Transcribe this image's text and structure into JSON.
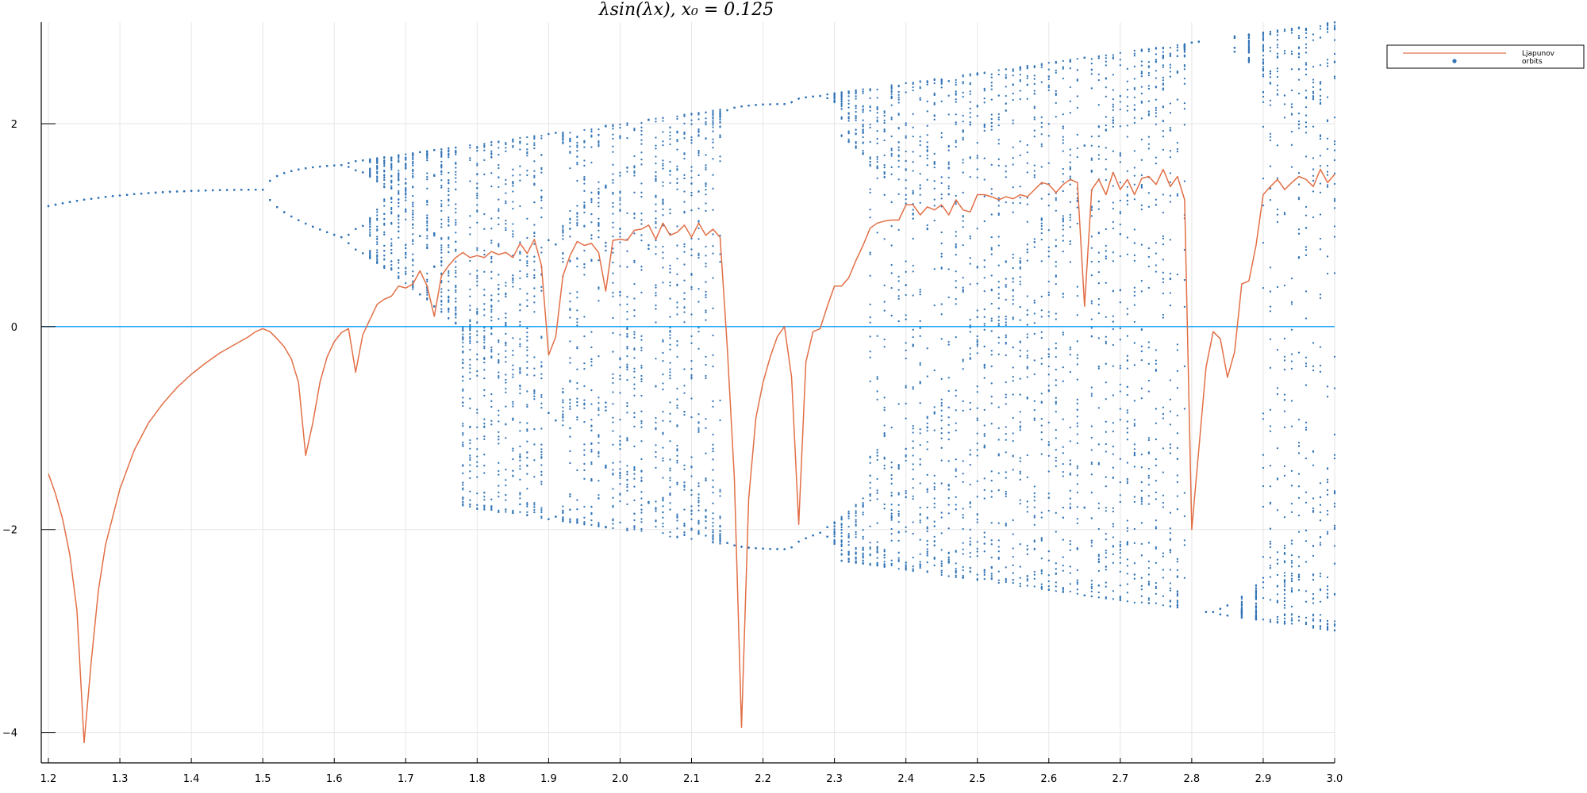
{
  "chart_data": {
    "type": "scatter",
    "title": "λsin(λx),  x₀ = 0.125",
    "xlabel": "",
    "ylabel": "",
    "xlim": [
      1.19,
      3.0
    ],
    "ylim": [
      -4.3,
      3.0
    ],
    "x_ticks": [
      "1.2",
      "1.3",
      "1.4",
      "1.5",
      "1.6",
      "1.7",
      "1.8",
      "1.9",
      "2.0",
      "2.1",
      "2.2",
      "2.3",
      "2.4",
      "2.5",
      "2.6",
      "2.7",
      "2.8",
      "2.9",
      "3.0"
    ],
    "y_ticks": [
      "2",
      "0",
      "−2",
      "−4"
    ],
    "grid": true,
    "legend_position": "top-right",
    "reference_line": {
      "y": 0,
      "color": "#009AFA"
    },
    "series": [
      {
        "name": "Ljapunov",
        "kind": "line",
        "color": "#E26F46",
        "x": [
          1.2,
          1.21,
          1.22,
          1.23,
          1.24,
          1.25,
          1.26,
          1.27,
          1.28,
          1.3,
          1.32,
          1.34,
          1.36,
          1.38,
          1.4,
          1.42,
          1.44,
          1.46,
          1.48,
          1.49,
          1.5,
          1.51,
          1.52,
          1.53,
          1.54,
          1.55,
          1.56,
          1.57,
          1.58,
          1.59,
          1.6,
          1.61,
          1.62,
          1.63,
          1.64,
          1.66,
          1.67,
          1.68,
          1.69,
          1.7,
          1.71,
          1.72,
          1.73,
          1.74,
          1.75,
          1.76,
          1.77,
          1.78,
          1.79,
          1.8,
          1.81,
          1.82,
          1.83,
          1.84,
          1.85,
          1.86,
          1.87,
          1.88,
          1.89,
          1.9,
          1.91,
          1.92,
          1.93,
          1.94,
          1.95,
          1.96,
          1.97,
          1.98,
          1.99,
          2.0,
          2.01,
          2.02,
          2.03,
          2.04,
          2.05,
          2.06,
          2.07,
          2.08,
          2.09,
          2.1,
          2.11,
          2.12,
          2.13,
          2.14,
          2.15,
          2.16,
          2.17,
          2.18,
          2.19,
          2.2,
          2.21,
          2.22,
          2.23,
          2.24,
          2.25,
          2.26,
          2.27,
          2.28,
          2.29,
          2.3,
          2.31,
          2.32,
          2.33,
          2.34,
          2.35,
          2.36,
          2.37,
          2.38,
          2.39,
          2.4,
          2.41,
          2.42,
          2.43,
          2.44,
          2.45,
          2.46,
          2.47,
          2.48,
          2.49,
          2.5,
          2.51,
          2.52,
          2.53,
          2.54,
          2.55,
          2.56,
          2.57,
          2.58,
          2.59,
          2.6,
          2.61,
          2.62,
          2.63,
          2.64,
          2.65,
          2.66,
          2.67,
          2.68,
          2.69,
          2.7,
          2.71,
          2.72,
          2.73,
          2.74,
          2.75,
          2.76,
          2.77,
          2.78,
          2.79,
          2.8,
          2.81,
          2.82,
          2.83,
          2.84,
          2.85,
          2.86,
          2.87,
          2.88,
          2.89,
          2.9,
          2.91,
          2.92,
          2.93,
          2.94,
          2.95,
          2.96,
          2.97,
          2.98,
          2.99,
          3.0
        ],
        "y": [
          -1.45,
          -1.65,
          -1.9,
          -2.25,
          -2.8,
          -4.1,
          -3.3,
          -2.6,
          -2.15,
          -1.6,
          -1.22,
          -0.95,
          -0.76,
          -0.6,
          -0.47,
          -0.36,
          -0.26,
          -0.18,
          -0.1,
          -0.05,
          -0.02,
          -0.05,
          -0.12,
          -0.2,
          -0.32,
          -0.55,
          -1.27,
          -0.95,
          -0.55,
          -0.3,
          -0.15,
          -0.06,
          -0.02,
          -0.45,
          -0.08,
          0.22,
          0.27,
          0.3,
          0.4,
          0.38,
          0.42,
          0.55,
          0.4,
          0.1,
          0.5,
          0.6,
          0.68,
          0.73,
          0.68,
          0.7,
          0.68,
          0.74,
          0.71,
          0.73,
          0.68,
          0.82,
          0.72,
          0.86,
          0.6,
          -0.28,
          -0.1,
          0.5,
          0.7,
          0.84,
          0.8,
          0.82,
          0.73,
          0.35,
          0.85,
          0.86,
          0.85,
          0.95,
          0.96,
          1.0,
          0.86,
          1.02,
          0.9,
          0.93,
          1.0,
          0.88,
          1.02,
          0.9,
          0.96,
          0.88,
          -0.2,
          -1.5,
          -3.95,
          -1.7,
          -0.9,
          -0.55,
          -0.3,
          -0.1,
          0.0,
          -0.5,
          -1.95,
          -0.35,
          -0.05,
          -0.02,
          0.2,
          0.4,
          0.4,
          0.48,
          0.65,
          0.8,
          0.97,
          1.02,
          1.04,
          1.05,
          1.05,
          1.2,
          1.2,
          1.1,
          1.18,
          1.15,
          1.2,
          1.1,
          1.25,
          1.15,
          1.13,
          1.3,
          1.3,
          1.28,
          1.25,
          1.28,
          1.26,
          1.3,
          1.28,
          1.35,
          1.42,
          1.4,
          1.32,
          1.4,
          1.45,
          1.42,
          0.2,
          1.35,
          1.45,
          1.3,
          1.52,
          1.35,
          1.45,
          1.3,
          1.46,
          1.48,
          1.4,
          1.55,
          1.38,
          1.48,
          1.25,
          -2.0,
          -1.2,
          -0.4,
          -0.05,
          -0.12,
          -0.5,
          -0.25,
          0.42,
          0.45,
          0.8,
          1.3,
          1.38,
          1.45,
          1.35,
          1.42,
          1.48,
          1.45,
          1.38,
          1.55,
          1.42,
          1.5
        ]
      },
      {
        "name": "orbits",
        "kind": "scatter",
        "color": "#3274B6",
        "map": "x_{n+1} = λ·sin(λ·x_n)",
        "x0": 0.125,
        "lambda_range": [
          1.2,
          3.0
        ]
      }
    ]
  }
}
